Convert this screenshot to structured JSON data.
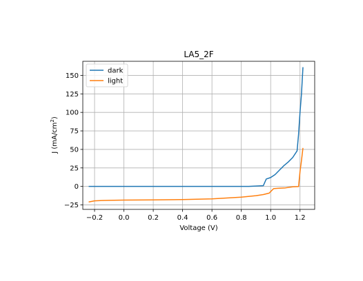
{
  "chart_data": {
    "type": "line",
    "title": "LA5_2F",
    "xlabel": "Voltage (V)",
    "ylabel_main": "J (mA/cm",
    "ylabel_sup": "2",
    "ylabel_close": ")",
    "xlim": [
      -0.28,
      1.3
    ],
    "ylim": [
      -31,
      169
    ],
    "xticks": [
      -0.2,
      0.0,
      0.2,
      0.4,
      0.6,
      0.8,
      1.0,
      1.2
    ],
    "xtick_labels": [
      "−0.2",
      "0.0",
      "0.2",
      "0.4",
      "0.6",
      "0.8",
      "1.0",
      "1.2"
    ],
    "yticks": [
      -25,
      0,
      25,
      50,
      75,
      100,
      125,
      150
    ],
    "ytick_labels": [
      "−25",
      "0",
      "25",
      "50",
      "75",
      "100",
      "125",
      "150"
    ],
    "grid": true,
    "legend_position": "top-left",
    "series": [
      {
        "name": "dark",
        "color": "#1f77b4",
        "x": [
          -0.24,
          -0.2,
          0.0,
          0.2,
          0.4,
          0.6,
          0.8,
          0.85,
          0.9,
          0.95,
          0.97,
          1.0,
          1.03,
          1.06,
          1.09,
          1.12,
          1.15,
          1.18,
          1.19,
          1.2,
          1.21,
          1.22
        ],
        "y": [
          0,
          0,
          0,
          0,
          0,
          0,
          0,
          0.1,
          0.5,
          1,
          10,
          12,
          16,
          22,
          28,
          33,
          39,
          48,
          70,
          100,
          125,
          161
        ]
      },
      {
        "name": "light",
        "color": "#ff7f0e",
        "x": [
          -0.24,
          -0.2,
          -0.15,
          -0.1,
          0.0,
          0.2,
          0.4,
          0.6,
          0.8,
          0.9,
          0.95,
          0.99,
          1.0,
          1.02,
          1.05,
          1.1,
          1.15,
          1.19,
          1.2,
          1.21,
          1.22
        ],
        "y": [
          -21,
          -19.5,
          -19,
          -18.8,
          -18.5,
          -18.2,
          -17.8,
          -16.8,
          -14.5,
          -12.5,
          -11,
          -9,
          -7,
          -3,
          -2.5,
          -2,
          -0.5,
          -0.2,
          20,
          35,
          52
        ]
      }
    ]
  }
}
